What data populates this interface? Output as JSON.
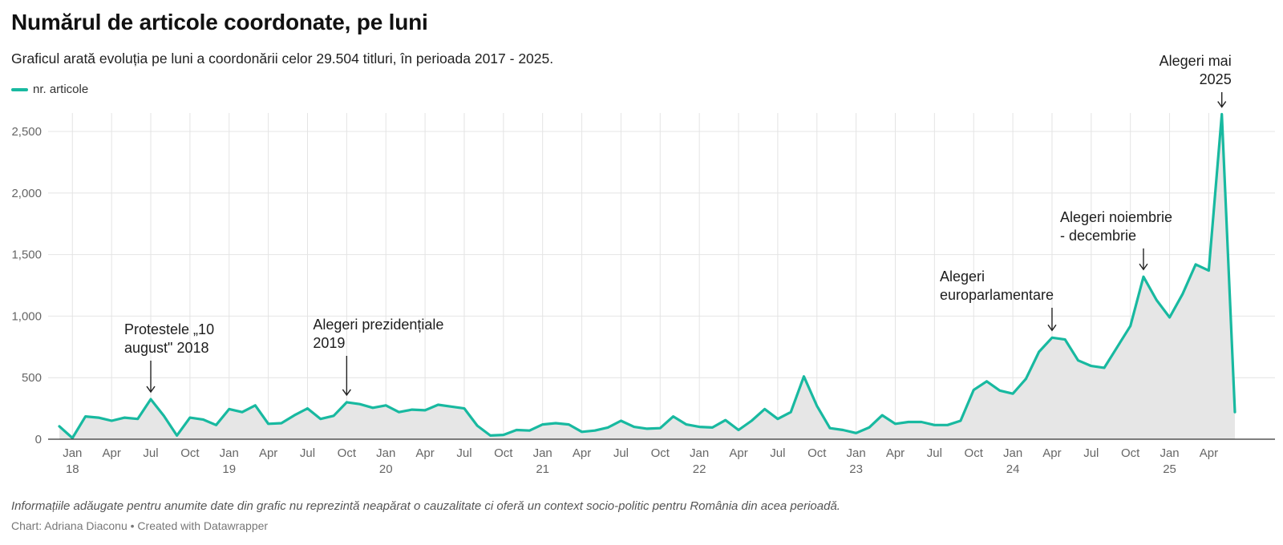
{
  "header": {
    "title": "Numărul de articole coordonate, pe luni",
    "subtitle": "Graficul arată evoluția pe luni a coordonării celor 29.504 titluri, în perioada 2017 - 2025."
  },
  "footer": {
    "notes": "Informațiile adăugate pentru anumite date din grafic nu reprezintă neapărat o cauzalitate ci oferă un context socio-politic pentru România din acea perioadă.",
    "byline": "Chart: Adriana Diaconu • Created with Datawrapper"
  },
  "colors": {
    "line": "#18b9a0",
    "area": "#e6e6e6",
    "grid": "#e4e4e4"
  },
  "chart_data": {
    "type": "area",
    "x_unit": "month",
    "x_start": "2017-12",
    "x_end": "2025-06",
    "ylim": [
      0,
      2650
    ],
    "grid": true,
    "legend_position": "top-left",
    "y_ticks": [
      {
        "value": 0,
        "label": "0"
      },
      {
        "value": 500,
        "label": "500"
      },
      {
        "value": 1000,
        "label": "1,000"
      },
      {
        "value": 1500,
        "label": "1,500"
      },
      {
        "value": 2000,
        "label": "2,000"
      },
      {
        "value": 2500,
        "label": "2,500"
      }
    ],
    "x_ticks": [
      {
        "month": "2018-01",
        "label": "Jan",
        "year": "18"
      },
      {
        "month": "2018-04",
        "label": "Apr"
      },
      {
        "month": "2018-07",
        "label": "Jul"
      },
      {
        "month": "2018-10",
        "label": "Oct"
      },
      {
        "month": "2019-01",
        "label": "Jan",
        "year": "19"
      },
      {
        "month": "2019-04",
        "label": "Apr"
      },
      {
        "month": "2019-07",
        "label": "Jul"
      },
      {
        "month": "2019-10",
        "label": "Oct"
      },
      {
        "month": "2020-01",
        "label": "Jan",
        "year": "20"
      },
      {
        "month": "2020-04",
        "label": "Apr"
      },
      {
        "month": "2020-07",
        "label": "Jul"
      },
      {
        "month": "2020-10",
        "label": "Oct"
      },
      {
        "month": "2021-01",
        "label": "Jan",
        "year": "21"
      },
      {
        "month": "2021-04",
        "label": "Apr"
      },
      {
        "month": "2021-07",
        "label": "Jul"
      },
      {
        "month": "2021-10",
        "label": "Oct"
      },
      {
        "month": "2022-01",
        "label": "Jan",
        "year": "22"
      },
      {
        "month": "2022-04",
        "label": "Apr"
      },
      {
        "month": "2022-07",
        "label": "Jul"
      },
      {
        "month": "2022-10",
        "label": "Oct"
      },
      {
        "month": "2023-01",
        "label": "Jan",
        "year": "23"
      },
      {
        "month": "2023-04",
        "label": "Apr"
      },
      {
        "month": "2023-07",
        "label": "Jul"
      },
      {
        "month": "2023-10",
        "label": "Oct"
      },
      {
        "month": "2024-01",
        "label": "Jan",
        "year": "24"
      },
      {
        "month": "2024-04",
        "label": "Apr"
      },
      {
        "month": "2024-07",
        "label": "Jul"
      },
      {
        "month": "2024-10",
        "label": "Oct"
      },
      {
        "month": "2025-01",
        "label": "Jan",
        "year": "25"
      },
      {
        "month": "2025-04",
        "label": "Apr"
      }
    ],
    "series": [
      {
        "name": "nr. articole",
        "values": [
          105,
          10,
          185,
          175,
          150,
          175,
          165,
          325,
          190,
          30,
          175,
          160,
          115,
          245,
          220,
          275,
          125,
          130,
          195,
          250,
          165,
          190,
          300,
          285,
          255,
          275,
          220,
          240,
          235,
          280,
          265,
          250,
          110,
          30,
          35,
          75,
          70,
          120,
          130,
          120,
          60,
          70,
          95,
          150,
          100,
          85,
          90,
          185,
          120,
          100,
          95,
          155,
          75,
          150,
          245,
          165,
          220,
          510,
          270,
          90,
          75,
          50,
          95,
          195,
          125,
          140,
          140,
          115,
          115,
          150,
          400,
          470,
          395,
          370,
          490,
          710,
          825,
          810,
          640,
          595,
          580,
          750,
          920,
          1320,
          1130,
          990,
          1180,
          1420,
          1370,
          2640,
          220
        ]
      }
    ],
    "annotations": [
      {
        "month": "2018-07",
        "lines": [
          "Protestele „10",
          "august\" 2018"
        ]
      },
      {
        "month": "2019-10",
        "lines": [
          "Alegeri prezidențiale",
          "2019"
        ]
      },
      {
        "month": "2024-04",
        "lines": [
          "Alegeri",
          "europarlamentare"
        ]
      },
      {
        "month": "2024-11",
        "lines": [
          "Alegeri noiembrie",
          "- decembrie"
        ]
      },
      {
        "month": "2025-05",
        "lines": [
          "Alegeri mai",
          "2025"
        ]
      }
    ]
  }
}
